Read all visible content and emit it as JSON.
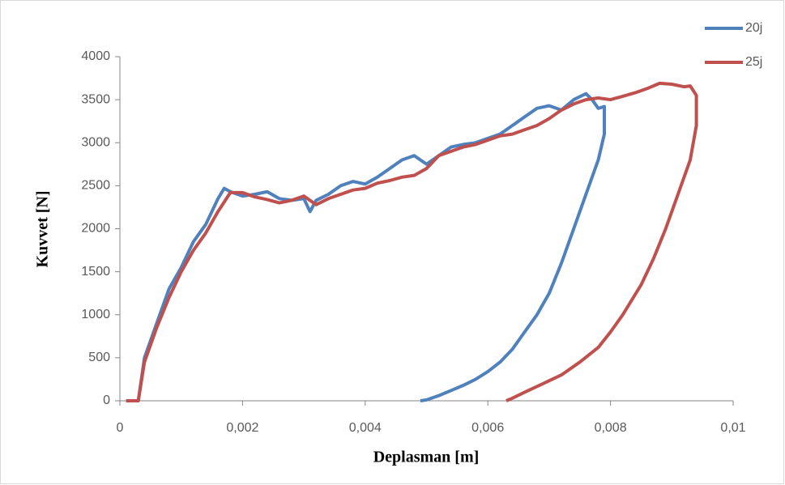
{
  "chart_data": {
    "type": "line",
    "x_label": "Deplasman [m]",
    "y_label": "Kuvvet [N]",
    "xlim": [
      0,
      0.01
    ],
    "xticks": [
      0,
      {
        "value": 0.002,
        "label": "0,002"
      },
      {
        "value": 0.004,
        "label": "0,004"
      },
      {
        "value": 0.006,
        "label": "0,006"
      },
      {
        "value": 0.008,
        "label": "0,008"
      },
      {
        "value": 0.01,
        "label": "0,01"
      }
    ],
    "ylim": [
      0,
      4000
    ],
    "yticks": [
      0,
      500,
      1000,
      1500,
      2000,
      2500,
      3000,
      3500,
      4000
    ],
    "legend": "top-right",
    "series": [
      {
        "name": "20j",
        "color": "#4f81bd",
        "x": [
          0.0001,
          0.0003,
          0.0004,
          0.0006,
          0.0008,
          0.001,
          0.0012,
          0.0014,
          0.0016,
          0.0017,
          0.0018,
          0.002,
          0.0022,
          0.0024,
          0.0026,
          0.0028,
          0.003,
          0.0031,
          0.0032,
          0.0034,
          0.0036,
          0.0038,
          0.004,
          0.0042,
          0.0044,
          0.0046,
          0.0048,
          0.005,
          0.0052,
          0.0054,
          0.0056,
          0.0058,
          0.006,
          0.0062,
          0.0064,
          0.0066,
          0.0068,
          0.007,
          0.0072,
          0.0074,
          0.0076,
          0.0077,
          0.0078,
          0.0079,
          0.0079,
          0.0078,
          0.0076,
          0.0074,
          0.0072,
          0.007,
          0.0068,
          0.0066,
          0.0064,
          0.0062,
          0.006,
          0.0058,
          0.0056,
          0.0054,
          0.0052,
          0.005,
          0.0049
        ],
        "values": [
          0,
          0,
          500,
          900,
          1300,
          1550,
          1850,
          2050,
          2350,
          2470,
          2430,
          2380,
          2400,
          2430,
          2350,
          2330,
          2350,
          2200,
          2330,
          2400,
          2500,
          2550,
          2520,
          2600,
          2700,
          2800,
          2850,
          2750,
          2850,
          2950,
          2980,
          3000,
          3050,
          3100,
          3200,
          3300,
          3400,
          3430,
          3380,
          3500,
          3570,
          3500,
          3400,
          3420,
          3100,
          2800,
          2400,
          2000,
          1600,
          1250,
          1000,
          800,
          600,
          450,
          340,
          250,
          180,
          120,
          60,
          10,
          0
        ]
      },
      {
        "name": "25j",
        "color": "#c0504d",
        "x": [
          0.0001,
          0.0003,
          0.0004,
          0.0006,
          0.0008,
          0.001,
          0.0012,
          0.0014,
          0.0016,
          0.0018,
          0.002,
          0.0022,
          0.0024,
          0.0026,
          0.0028,
          0.003,
          0.0032,
          0.0034,
          0.0036,
          0.0038,
          0.004,
          0.0042,
          0.0044,
          0.0046,
          0.0048,
          0.005,
          0.0052,
          0.0054,
          0.0056,
          0.0058,
          0.006,
          0.0062,
          0.0064,
          0.0066,
          0.0068,
          0.007,
          0.0072,
          0.0074,
          0.0076,
          0.0078,
          0.008,
          0.0082,
          0.0084,
          0.0086,
          0.0088,
          0.009,
          0.0092,
          0.0093,
          0.0094,
          0.0094,
          0.0093,
          0.0091,
          0.0089,
          0.0087,
          0.0085,
          0.0082,
          0.008,
          0.0078,
          0.0075,
          0.0072,
          0.0069,
          0.0066,
          0.0064,
          0.0063
        ],
        "values": [
          0,
          0,
          450,
          850,
          1200,
          1500,
          1750,
          1950,
          2200,
          2420,
          2420,
          2370,
          2340,
          2300,
          2330,
          2380,
          2280,
          2350,
          2400,
          2450,
          2470,
          2530,
          2560,
          2600,
          2620,
          2700,
          2850,
          2900,
          2950,
          2980,
          3030,
          3080,
          3100,
          3150,
          3200,
          3280,
          3380,
          3450,
          3500,
          3520,
          3500,
          3540,
          3580,
          3630,
          3690,
          3680,
          3650,
          3660,
          3550,
          3200,
          2800,
          2400,
          2000,
          1650,
          1350,
          1000,
          800,
          620,
          450,
          300,
          200,
          100,
          30,
          0
        ]
      }
    ]
  }
}
